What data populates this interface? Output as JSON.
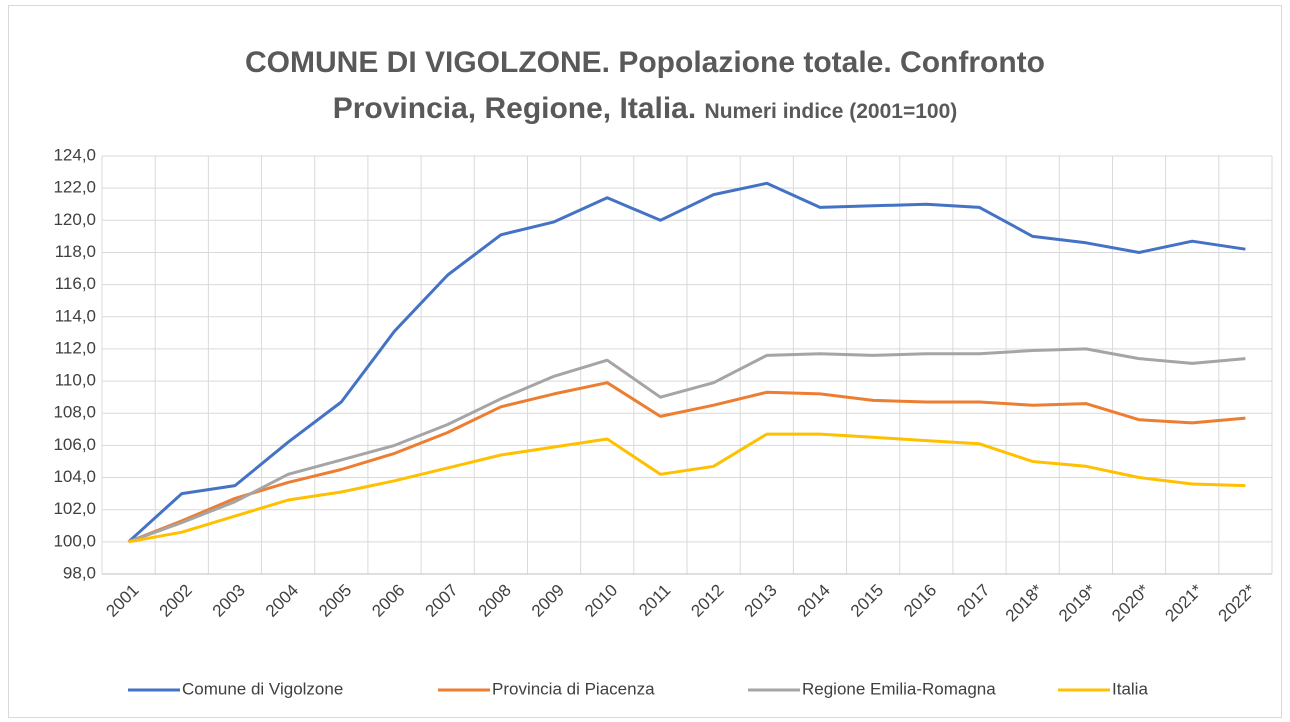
{
  "chart_data": {
    "type": "line",
    "title": "COMUNE DI VIGOLZONE. Popolazione totale. Confronto Provincia, Regione, Italia.",
    "subtitle": "Numeri indice (2001=100)",
    "categories": [
      "2001",
      "2002",
      "2003",
      "2004",
      "2005",
      "2006",
      "2007",
      "2008",
      "2009",
      "2010",
      "2011",
      "2012",
      "2013",
      "2014",
      "2015",
      "2016",
      "2017",
      "2018*",
      "2019*",
      "2020*",
      "2021*",
      "2022*"
    ],
    "series": [
      {
        "name": "Comune di Vigolzone",
        "color": "#4472c4",
        "values": [
          100.0,
          103.0,
          103.5,
          106.2,
          108.7,
          113.1,
          116.6,
          119.1,
          119.9,
          121.4,
          120.0,
          121.6,
          122.3,
          120.8,
          120.9,
          121.0,
          120.8,
          119.0,
          118.6,
          118.0,
          118.7,
          118.2
        ]
      },
      {
        "name": "Provincia di Piacenza",
        "color": "#ed7d31",
        "values": [
          100.0,
          101.3,
          102.7,
          103.7,
          104.5,
          105.5,
          106.8,
          108.4,
          109.2,
          109.9,
          107.8,
          108.5,
          109.3,
          109.2,
          108.8,
          108.7,
          108.7,
          108.5,
          108.6,
          107.6,
          107.4,
          107.7
        ]
      },
      {
        "name": "Regione Emilia-Romagna",
        "color": "#a5a5a5",
        "values": [
          100.0,
          101.2,
          102.5,
          104.2,
          105.1,
          106.0,
          107.3,
          108.9,
          110.3,
          111.3,
          109.0,
          109.9,
          111.6,
          111.7,
          111.6,
          111.7,
          111.7,
          111.9,
          112.0,
          111.4,
          111.1,
          111.4
        ]
      },
      {
        "name": "Italia",
        "color": "#ffc000",
        "values": [
          100.0,
          100.6,
          101.6,
          102.6,
          103.1,
          103.8,
          104.6,
          105.4,
          105.9,
          106.4,
          104.2,
          104.7,
          106.7,
          106.7,
          106.5,
          106.3,
          106.1,
          105.0,
          104.7,
          104.0,
          103.6,
          103.5
        ]
      }
    ],
    "ylim": [
      98,
      124
    ],
    "yticks": [
      {
        "value": 98,
        "label": "98,0"
      },
      {
        "value": 100,
        "label": "100,0"
      },
      {
        "value": 102,
        "label": "102,0"
      },
      {
        "value": 104,
        "label": "104,0"
      },
      {
        "value": 106,
        "label": "106,0"
      },
      {
        "value": 108,
        "label": "108,0"
      },
      {
        "value": 110,
        "label": "110,0"
      },
      {
        "value": 112,
        "label": "112,0"
      },
      {
        "value": 114,
        "label": "114,0"
      },
      {
        "value": 116,
        "label": "116,0"
      },
      {
        "value": 118,
        "label": "118,0"
      },
      {
        "value": 120,
        "label": "120,0"
      },
      {
        "value": 122,
        "label": "122,0"
      },
      {
        "value": 124,
        "label": "124,0"
      }
    ],
    "grid": true,
    "legend": "bottom"
  }
}
